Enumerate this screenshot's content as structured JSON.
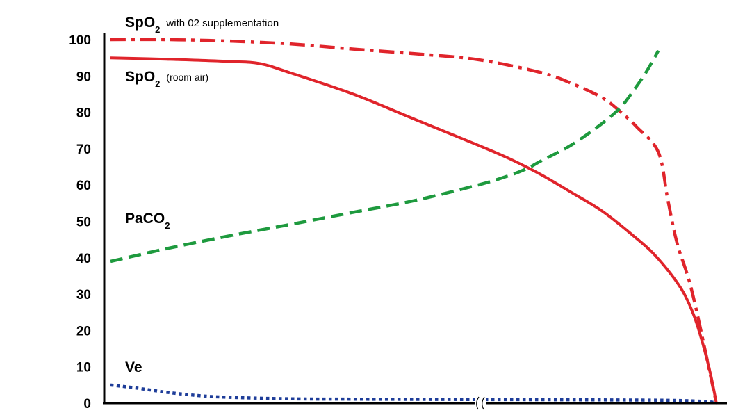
{
  "chart_data": {
    "type": "line",
    "title": "",
    "xlabel": "",
    "ylabel": "",
    "ylim": [
      0,
      100
    ],
    "xlim": [
      0,
      100
    ],
    "y_ticks": [
      0,
      10,
      20,
      30,
      40,
      50,
      60,
      70,
      80,
      90,
      100
    ],
    "x_ticks": [],
    "x_axis_break": true,
    "grid": false,
    "legend": "none (labels placed beside curves)",
    "series": [
      {
        "key": "spo2_supp",
        "label_main": "SpO",
        "label_sub": "2",
        "label_note": "with 02 supplementation",
        "color": "#e0242b",
        "style": "dash-dot",
        "x": [
          1,
          10,
          20,
          30,
          40,
          50,
          60,
          70,
          75,
          80,
          83,
          85.5,
          89,
          90.5,
          92,
          94.5,
          98.3
        ],
        "y": [
          100,
          100,
          99.6,
          98.8,
          97.4,
          96.1,
          94.5,
          91,
          88,
          84,
          80,
          76,
          69,
          56,
          44,
          30,
          0
        ]
      },
      {
        "key": "spo2_room",
        "label_main": "SpO",
        "label_sub": "2",
        "label_note": "(room air)",
        "color": "#e0242b",
        "style": "solid",
        "x": [
          1,
          10,
          20,
          25,
          30,
          40,
          50,
          60,
          65,
          70,
          75,
          80,
          85,
          88,
          91,
          93,
          94.5,
          95.5,
          96.5,
          97.5,
          98.3
        ],
        "y": [
          95,
          94.6,
          94,
          93.4,
          90.8,
          85,
          78,
          71,
          67.3,
          63,
          58,
          52.8,
          46,
          41.5,
          35.5,
          30.5,
          25,
          20,
          14,
          7,
          0
        ]
      },
      {
        "key": "paco2",
        "label_main": "PaCO",
        "label_sub": "2",
        "label_note": "",
        "color": "#1e9a3e",
        "style": "dashed",
        "x": [
          1,
          10,
          20,
          30,
          40,
          50,
          60,
          65,
          68,
          70,
          75,
          80,
          83,
          85,
          87,
          89
        ],
        "y": [
          39,
          42.5,
          46,
          49.2,
          52.5,
          55.8,
          60,
          62.6,
          64.6,
          66.5,
          71,
          77,
          81.5,
          86,
          91,
          97
        ]
      },
      {
        "key": "ve",
        "label_main": "Ve",
        "label_sub": "",
        "label_note": "",
        "color": "#1e3d99",
        "style": "dotted",
        "x": [
          1,
          5,
          10,
          15,
          20,
          30,
          40,
          50,
          60,
          70,
          80,
          90,
          95,
          97.5,
          98.3
        ],
        "y": [
          5,
          4.2,
          3,
          2.1,
          1.6,
          1.2,
          1.1,
          1.05,
          1.0,
          0.95,
          0.9,
          0.8,
          0.6,
          0.3,
          0
        ]
      }
    ]
  }
}
